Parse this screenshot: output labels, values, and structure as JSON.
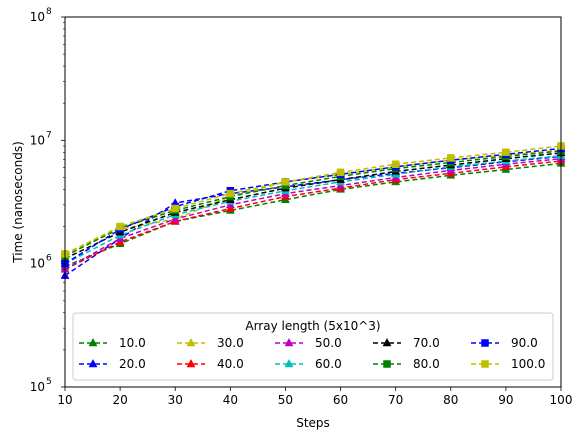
{
  "chart_data": {
    "type": "line",
    "title": "",
    "xlabel": "Steps",
    "ylabel": "Time (nanoseconds)",
    "x": [
      10,
      20,
      30,
      40,
      50,
      60,
      70,
      80,
      90,
      100
    ],
    "xlim": [
      10,
      100
    ],
    "ylim": [
      100000,
      100000000
    ],
    "yscale": "log",
    "xticks": [
      "10",
      "20",
      "30",
      "40",
      "50",
      "60",
      "70",
      "80",
      "90",
      "100"
    ],
    "ytick_base": "10",
    "ytick_exponents": [
      "5",
      "6",
      "7",
      "8"
    ],
    "grid": false,
    "legend": {
      "title": "Array length (5x10^3)",
      "placement": "lower-center",
      "columns": 5
    },
    "series": [
      {
        "name": "10.0",
        "color": "#008000",
        "marker": "triangle",
        "values": [
          950000,
          1450000,
          2200000,
          2700000,
          3300000,
          4000000,
          4600000,
          5200000,
          5800000,
          6500000
        ]
      },
      {
        "name": "20.0",
        "color": "#0000ff",
        "marker": "triangle",
        "values": [
          800000,
          1600000,
          3100000,
          3700000,
          4200000,
          4800000,
          5400000,
          6000000,
          6700000,
          7400000
        ]
      },
      {
        "name": "30.0",
        "color": "#bfbf00",
        "marker": "triangle",
        "values": [
          1200000,
          1900000,
          2300000,
          3500000,
          4600000,
          5300000,
          6100000,
          6900000,
          7600000,
          8300000
        ]
      },
      {
        "name": "40.0",
        "color": "#ff0000",
        "marker": "triangle",
        "values": [
          900000,
          1500000,
          2200000,
          2800000,
          3500000,
          4100000,
          4800000,
          5400000,
          6100000,
          6800000
        ]
      },
      {
        "name": "50.0",
        "color": "#bf00bf",
        "marker": "triangle",
        "values": [
          900000,
          1600000,
          2300000,
          3000000,
          3700000,
          4300000,
          5000000,
          5700000,
          6400000,
          7100000
        ]
      },
      {
        "name": "60.0",
        "color": "#00bfbf",
        "marker": "triangle",
        "values": [
          1000000,
          1700000,
          2500000,
          3200000,
          3900000,
          4600000,
          5300000,
          6100000,
          6800000,
          7500000
        ]
      },
      {
        "name": "70.0",
        "color": "#000000",
        "marker": "triangle",
        "values": [
          1100000,
          1800000,
          2600000,
          3300000,
          4100000,
          4800000,
          5600000,
          6300000,
          7100000,
          7900000
        ]
      },
      {
        "name": "80.0",
        "color": "#008000",
        "marker": "square",
        "values": [
          1150000,
          1950000,
          2700000,
          3500000,
          4300000,
          5100000,
          5900000,
          6600000,
          7400000,
          8200000
        ]
      },
      {
        "name": "90.0",
        "color": "#0000ff",
        "marker": "square",
        "values": [
          1000000,
          1900000,
          2900000,
          3900000,
          4600000,
          5300000,
          6100000,
          6900000,
          7700000,
          8600000
        ]
      },
      {
        "name": "100.0",
        "color": "#bfbf00",
        "marker": "square",
        "values": [
          1200000,
          2000000,
          2800000,
          3700000,
          4600000,
          5500000,
          6400000,
          7200000,
          8000000,
          9000000
        ]
      }
    ]
  }
}
